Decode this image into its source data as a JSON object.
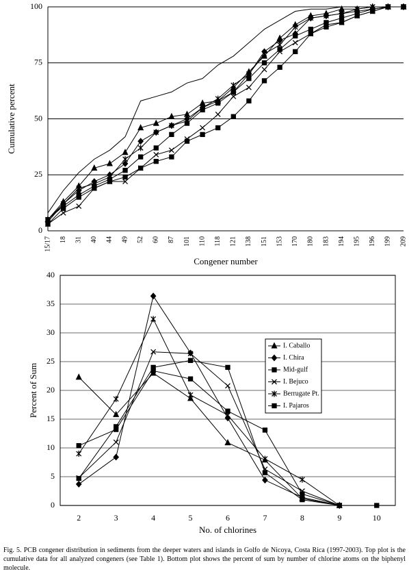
{
  "chart_data": [
    {
      "type": "line",
      "ylabel": "Cumulative percent",
      "xlabel": "Congener  number",
      "categories": [
        "15/17",
        "18",
        "31",
        "40",
        "44",
        "49",
        "52",
        "60",
        "87",
        "101",
        "110",
        "118",
        "121",
        "138",
        "151",
        "153",
        "170",
        "180",
        "183",
        "194",
        "195",
        "196",
        "199",
        "209"
      ],
      "ylim": [
        0,
        100
      ],
      "yticks": [
        0,
        25,
        50,
        75,
        100
      ],
      "grid": true,
      "color": "#000000",
      "series": [
        {
          "marker": "none",
          "values": [
            8,
            18,
            26,
            32,
            36,
            42,
            58,
            60,
            62,
            66,
            68,
            74,
            78,
            84,
            90,
            94,
            98,
            99,
            99,
            100,
            100,
            100,
            100,
            100
          ]
        },
        {
          "marker": "triangle",
          "values": [
            5,
            13,
            20,
            28,
            30,
            35,
            46,
            48,
            51,
            52,
            57,
            58,
            64,
            71,
            78,
            86,
            92,
            96,
            97,
            99,
            99,
            100,
            100,
            100
          ]
        },
        {
          "marker": "diamond",
          "values": [
            4,
            12,
            18,
            22,
            25,
            30,
            40,
            44,
            47,
            50,
            55,
            58,
            62,
            70,
            80,
            85,
            88,
            95,
            96,
            97,
            98,
            99,
            100,
            100
          ]
        },
        {
          "marker": "square",
          "values": [
            3,
            10,
            15,
            19,
            22,
            24,
            28,
            31,
            33,
            40,
            43,
            46,
            51,
            58,
            67,
            73,
            80,
            88,
            91,
            93,
            96,
            98,
            100,
            100
          ]
        },
        {
          "marker": "square",
          "values": [
            5,
            11,
            16,
            20,
            23,
            27,
            33,
            37,
            43,
            48,
            54,
            57,
            62,
            68,
            75,
            81,
            87,
            90,
            93,
            95,
            97,
            99,
            100,
            100
          ]
        },
        {
          "marker": "x",
          "values": [
            3,
            8,
            11,
            19,
            22,
            22,
            28,
            34,
            36,
            41,
            46,
            52,
            60,
            64,
            72,
            80,
            84,
            88,
            92,
            93,
            96,
            98,
            100,
            100
          ]
        },
        {
          "marker": "star",
          "values": [
            5,
            12,
            19,
            21,
            24,
            32,
            37,
            44,
            47,
            49,
            55,
            59,
            65,
            70,
            79,
            83,
            91,
            95,
            96,
            97,
            99,
            100,
            100,
            100
          ]
        }
      ]
    },
    {
      "type": "line",
      "ylabel": "Percent of Sum",
      "xlabel": "No. of chlorines",
      "categories": [
        "2",
        "3",
        "4",
        "5",
        "6",
        "7",
        "8",
        "9",
        "10"
      ],
      "ylim": [
        0,
        40
      ],
      "yticks": [
        0,
        5,
        10,
        15,
        20,
        25,
        30,
        35,
        40
      ],
      "grid": true,
      "color": "#000000",
      "legend": "right",
      "series": [
        {
          "name": "I. Caballo",
          "marker": "triangle",
          "values": [
            22.3,
            15.8,
            23.0,
            18.6,
            10.9,
            7.9,
            1.2,
            0,
            null
          ]
        },
        {
          "name": "I. Chira",
          "marker": "diamond",
          "values": [
            3.7,
            8.4,
            36.4,
            26.5,
            15.2,
            4.4,
            1.4,
            0,
            null
          ]
        },
        {
          "name": "Mid-gulf",
          "marker": "square",
          "values": [
            10.4,
            13.2,
            23.4,
            22.0,
            16.4,
            13.1,
            2.0,
            0,
            null
          ]
        },
        {
          "name": "I. Bejuco",
          "marker": "x",
          "values": [
            4.8,
            11.0,
            26.7,
            26.4,
            20.8,
            6.3,
            2.5,
            0,
            null
          ]
        },
        {
          "name": "Berrugate Pt.",
          "marker": "star",
          "values": [
            9.0,
            18.5,
            32.4,
            19.2,
            15.7,
            8.1,
            4.5,
            0,
            null
          ]
        },
        {
          "name": "I. Pajaros",
          "marker": "square",
          "values": [
            4.7,
            13.7,
            24.0,
            25.2,
            24.0,
            5.7,
            1.0,
            0,
            0
          ]
        }
      ]
    }
  ],
  "caption": "Fig. 5.  PCB congener distribution in sediments from the deeper waters and islands in Golfo de Nicoya, Costa Rica (1997-2003).  Top plot is the cumulative data for all analyzed congeners (see Table 1).  Bottom plot shows the percent of sum by number of chlorine atoms on the biphenyl molecule."
}
